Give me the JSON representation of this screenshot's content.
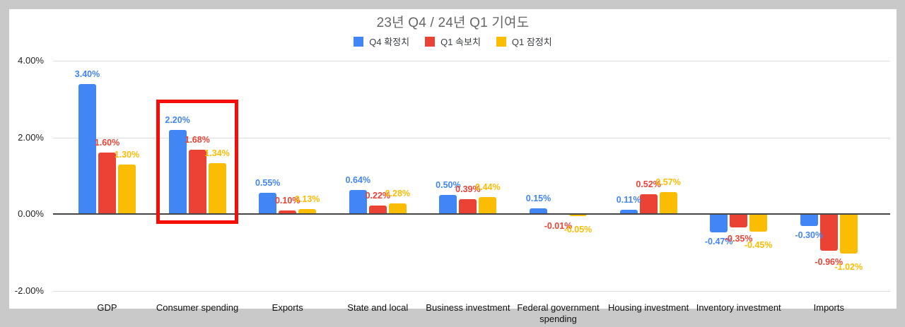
{
  "frame": {
    "background_color": "#c9c9c9",
    "panel_color": "#ffffff"
  },
  "chart_data": {
    "type": "bar",
    "title": "23년 Q4 / 24년 Q1 기여도",
    "title_color": "#666666",
    "legend_position": "top",
    "grid": true,
    "categories": [
      "GDP",
      "Consumer spending",
      "Exports",
      "State and local",
      "Business investment",
      "Federal government spending",
      "Housing investment",
      "Inventory investment",
      "Imports"
    ],
    "series": [
      {
        "name": "Q4 확정치",
        "color": "#4285F4",
        "values": [
          3.4,
          2.2,
          0.55,
          0.64,
          0.5,
          0.15,
          0.11,
          -0.47,
          -0.3
        ]
      },
      {
        "name": "Q1 속보치",
        "color": "#EA4335",
        "values": [
          1.6,
          1.68,
          0.1,
          0.22,
          0.39,
          -0.01,
          0.52,
          -0.35,
          -0.96
        ]
      },
      {
        "name": "Q1 잠정치",
        "color": "#FBBC04",
        "values": [
          1.3,
          1.34,
          0.13,
          0.28,
          0.44,
          -0.05,
          0.57,
          -0.45,
          -1.02
        ]
      }
    ],
    "value_label_format": "0.00%",
    "y_axis": {
      "min": -2,
      "max": 4,
      "ticks": [
        "4.00%",
        "2.00%",
        "0.00%",
        "-2.00%"
      ],
      "tick_values": [
        4,
        2,
        0,
        -2
      ],
      "gridline_color": "#dcdcdc",
      "zero_line_color": "#454545"
    }
  },
  "annotation": {
    "type": "highlight-box",
    "target_category": "Consumer spending",
    "group_index": 1,
    "color": "#f50d0a"
  }
}
